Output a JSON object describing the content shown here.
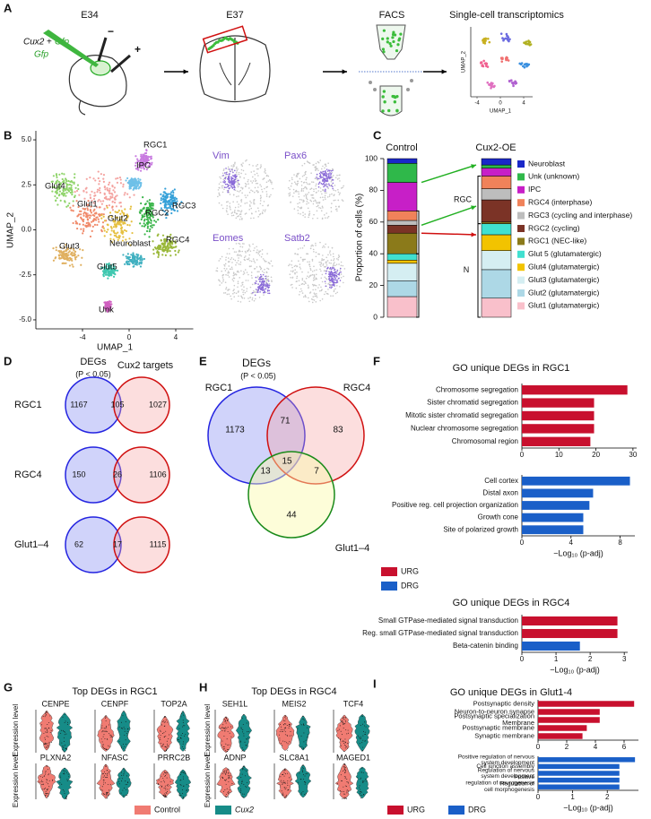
{
  "panels": [
    "A",
    "B",
    "C",
    "D",
    "E",
    "F",
    "G",
    "H",
    "I"
  ],
  "panel_a": {
    "stages": [
      "E34",
      "E37",
      "FACS",
      "Single-cell transcriptomics"
    ],
    "construct": [
      "Cux2",
      "+",
      "Gfp"
    ],
    "control": "Gfp",
    "poles": [
      "−",
      "+"
    ],
    "umap": {
      "xlabel": "UMAP_1",
      "ylabel": "UMAP_2",
      "xticks": [
        -4,
        0,
        4
      ]
    }
  },
  "panel_b": {
    "xlabel": "UMAP_1",
    "ylabel": "UMAP_2",
    "xlim": [
      -8,
      5.5
    ],
    "ylim": [
      -5.5,
      5.5
    ],
    "xticks": [
      -4,
      0,
      4
    ],
    "yticks": [
      {
        "value": 5,
        "label": "5.0"
      },
      {
        "value": 2.5,
        "label": "2.5"
      },
      {
        "value": 0,
        "label": "0.0"
      },
      {
        "value": -2.5,
        "label": "-2.5"
      },
      {
        "value": -5,
        "label": "-5.0"
      }
    ],
    "clusters": [
      "RGC1",
      "IPC",
      "Glut4",
      "Glut1",
      "Glut2",
      "RGC2",
      "RGC3",
      "RGC4",
      "Glut3",
      "Neuroblast",
      "Glut5",
      "Unk"
    ],
    "feature_genes": [
      "Vim",
      "Pax6",
      "Eomes",
      "Satb2"
    ]
  },
  "panel_d": {
    "header": [
      "DEGs",
      "(P < 0.05)",
      "Cux2 targets"
    ],
    "rows": [
      {
        "label": "RGC1",
        "values": [
          1167,
          105,
          1027
        ]
      },
      {
        "label": "RGC4",
        "values": [
          150,
          26,
          1106
        ]
      },
      {
        "label": "Glut1–4",
        "values": [
          62,
          17,
          1115
        ]
      }
    ]
  },
  "panel_e": {
    "title": "DEGs",
    "subtitle": "(P < 0.05)",
    "sets": [
      "RGC1",
      "RGC4",
      "Glut1–4"
    ],
    "regions": [
      1173,
      71,
      83,
      13,
      15,
      7,
      44
    ]
  },
  "panel_g": {
    "title": "Top DEGs in RGC1",
    "ylabel": "Expression level",
    "genes": [
      "CENPE",
      "CENPF",
      "TOP2A",
      "PLXNA2",
      "NFASC",
      "PRRC2B"
    ]
  },
  "panel_h": {
    "title": "Top DEGs in RGC4",
    "ylabel": "Expression level",
    "genes": [
      "SEH1L",
      "MEIS2",
      "TCF4",
      "ADNP",
      "SLC8A1",
      "MAGED1"
    ]
  },
  "violin_legend": [
    {
      "name": "Control",
      "color": "#f07b72"
    },
    {
      "name": "Cux2",
      "color": "#168c88"
    }
  ],
  "chart_data": [
    {
      "type": "bar",
      "stacked": true,
      "categories": [
        "Control",
        "Cux2-OE"
      ],
      "ylabel": "Proportion of cells (%)",
      "ylim": [
        0,
        100
      ],
      "yticks": [
        0,
        20,
        40,
        60,
        80,
        100
      ],
      "annotations": [
        "RGC",
        "N"
      ],
      "series": [
        {
          "name": "Glut1 (glutamatergic)",
          "color": "#f9c0cb",
          "values": [
            13,
            12
          ]
        },
        {
          "name": "Glut2 (glutamatergic)",
          "color": "#add8e6",
          "values": [
            10,
            18
          ]
        },
        {
          "name": "Glut3 (glutamatergic)",
          "color": "#d5eef2",
          "values": [
            11,
            12
          ]
        },
        {
          "name": "Glut4 (glutamatergic)",
          "color": "#f2c300",
          "values": [
            2,
            10
          ]
        },
        {
          "name": "Glut 5 (glutamatergic)",
          "color": "#40e0d0",
          "values": [
            4,
            7
          ]
        },
        {
          "name": "RGC1 (NEC-like)",
          "color": "#8b7a1a",
          "values": [
            13,
            1
          ]
        },
        {
          "name": "RGC2 (cycling)",
          "color": "#7b3326",
          "values": [
            5,
            14
          ]
        },
        {
          "name": "RGC3 (cycling and interphase)",
          "color": "#bdbdbd",
          "values": [
            3,
            7
          ]
        },
        {
          "name": "RGC4 (interphase)",
          "color": "#f0825a",
          "values": [
            6,
            8
          ]
        },
        {
          "name": "IPC",
          "color": "#c71fc7",
          "values": [
            18,
            5
          ]
        },
        {
          "name": "Unk (unknown)",
          "color": "#2fb84a",
          "values": [
            12,
            2
          ]
        },
        {
          "name": "Neuroblast",
          "color": "#1a28c8",
          "values": [
            3,
            4
          ]
        }
      ]
    },
    {
      "type": "bar",
      "orientation": "horizontal",
      "title": "GO unique DEGs in RGC1",
      "categories": [
        "Chromosome segregation",
        "Sister chromatid segregation",
        "Mitotic sister chromatid segregation",
        "Nuclear chromosome segregation",
        "Chromosomal region"
      ],
      "xlim": [
        0,
        31
      ],
      "xticks": [
        0,
        10,
        20,
        30
      ],
      "series": [
        {
          "name": "URG",
          "color": "#c8102e",
          "values": [
            28.5,
            19.5,
            19.5,
            19.5,
            18.5
          ]
        }
      ]
    },
    {
      "type": "bar",
      "orientation": "horizontal",
      "xlabel": "−Log₁₀ (p-adj)",
      "categories": [
        "Cell cortex",
        "Distal axon",
        "Positive reg. cell projection organization",
        "Growth cone",
        "Site of polarized growth"
      ],
      "xlim": [
        0,
        9.2
      ],
      "xticks": [
        0,
        4,
        8
      ],
      "series": [
        {
          "name": "DRG",
          "color": "#1a5fc8",
          "values": [
            8.8,
            5.8,
            5.5,
            5.0,
            5.0
          ]
        }
      ]
    },
    {
      "type": "bar",
      "orientation": "horizontal",
      "title": "GO unique DEGs in RGC4",
      "xlabel": "−Log₁₀ (p-adj)",
      "categories": [
        "Small GTPase-mediated signal transduction",
        "Reg. small GTPase-mediated signal transduction",
        "Beta-catenin binding"
      ],
      "xlim": [
        0,
        3.1
      ],
      "xticks": [
        0,
        1,
        2,
        3
      ],
      "series": [
        {
          "name": "URG",
          "color": "#c8102e",
          "values": [
            2.8,
            2.8,
            null
          ]
        },
        {
          "name": "DRG",
          "color": "#1a5fc8",
          "values": [
            null,
            null,
            1.7
          ]
        }
      ]
    },
    {
      "type": "bar",
      "orientation": "horizontal",
      "title": "GO unique DEGs in Glut1-4",
      "categories": [
        "Postsynaptic density",
        "Neuron-to-neuron synapse",
        [
          "Postsynaptic specialization",
          "Membrane"
        ],
        "Postsynaptic membrane",
        "Synaptic membrane"
      ],
      "xlim": [
        0,
        7
      ],
      "xticks": [
        0,
        2,
        4,
        6
      ],
      "series": [
        {
          "name": "URG",
          "color": "#c8102e",
          "values": [
            6.7,
            4.3,
            4.3,
            3.4,
            3.1
          ]
        }
      ]
    },
    {
      "type": "bar",
      "orientation": "horizontal",
      "xlabel": "−Log₁₀ (p-adj)",
      "categories": [
        [
          "Positive regulation of nervous",
          "system development"
        ],
        "Cell junction assembly",
        [
          "Regulation of nervous",
          "system development"
        ],
        [
          "Positive",
          "regulation of neurogenesis"
        ],
        [
          "Regulation of",
          "cell morphogenesis"
        ]
      ],
      "xlim": [
        0,
        2.9
      ],
      "xticks": [
        0,
        1,
        2
      ],
      "series": [
        {
          "name": "DRG",
          "color": "#1a5fc8",
          "values": [
            2.8,
            2.35,
            2.35,
            2.35,
            2.35
          ]
        }
      ]
    }
  ]
}
